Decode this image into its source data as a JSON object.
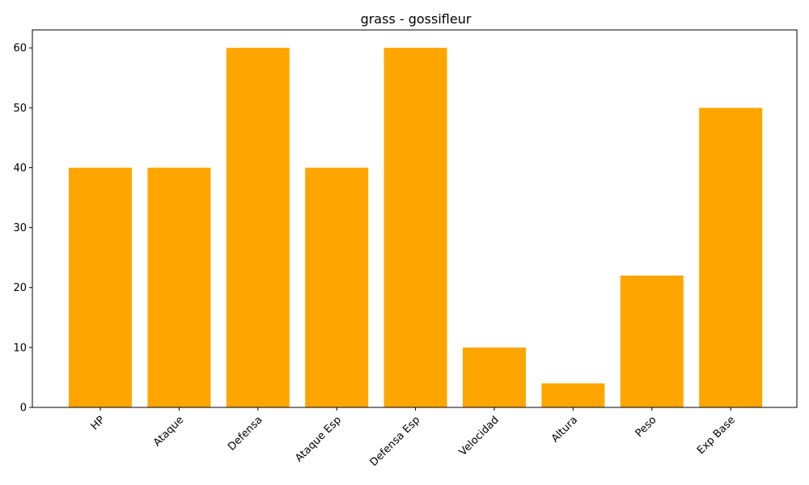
{
  "chart_data": {
    "type": "bar",
    "title": "grass - gossifleur",
    "xlabel": "",
    "ylabel": "",
    "categories": [
      "HP",
      "Ataque",
      "Defensa",
      "Ataque Esp",
      "Defensa Esp",
      "Velocidad",
      "Altura",
      "Peso",
      "Exp Base"
    ],
    "values": [
      40,
      40,
      60,
      40,
      60,
      10,
      4,
      22,
      50
    ],
    "ylim": [
      0,
      63
    ],
    "yticks": [
      0,
      10,
      20,
      30,
      40,
      50,
      60
    ],
    "bar_color": "#ffa500",
    "grid": false,
    "x_tick_rotation_deg": 45
  }
}
